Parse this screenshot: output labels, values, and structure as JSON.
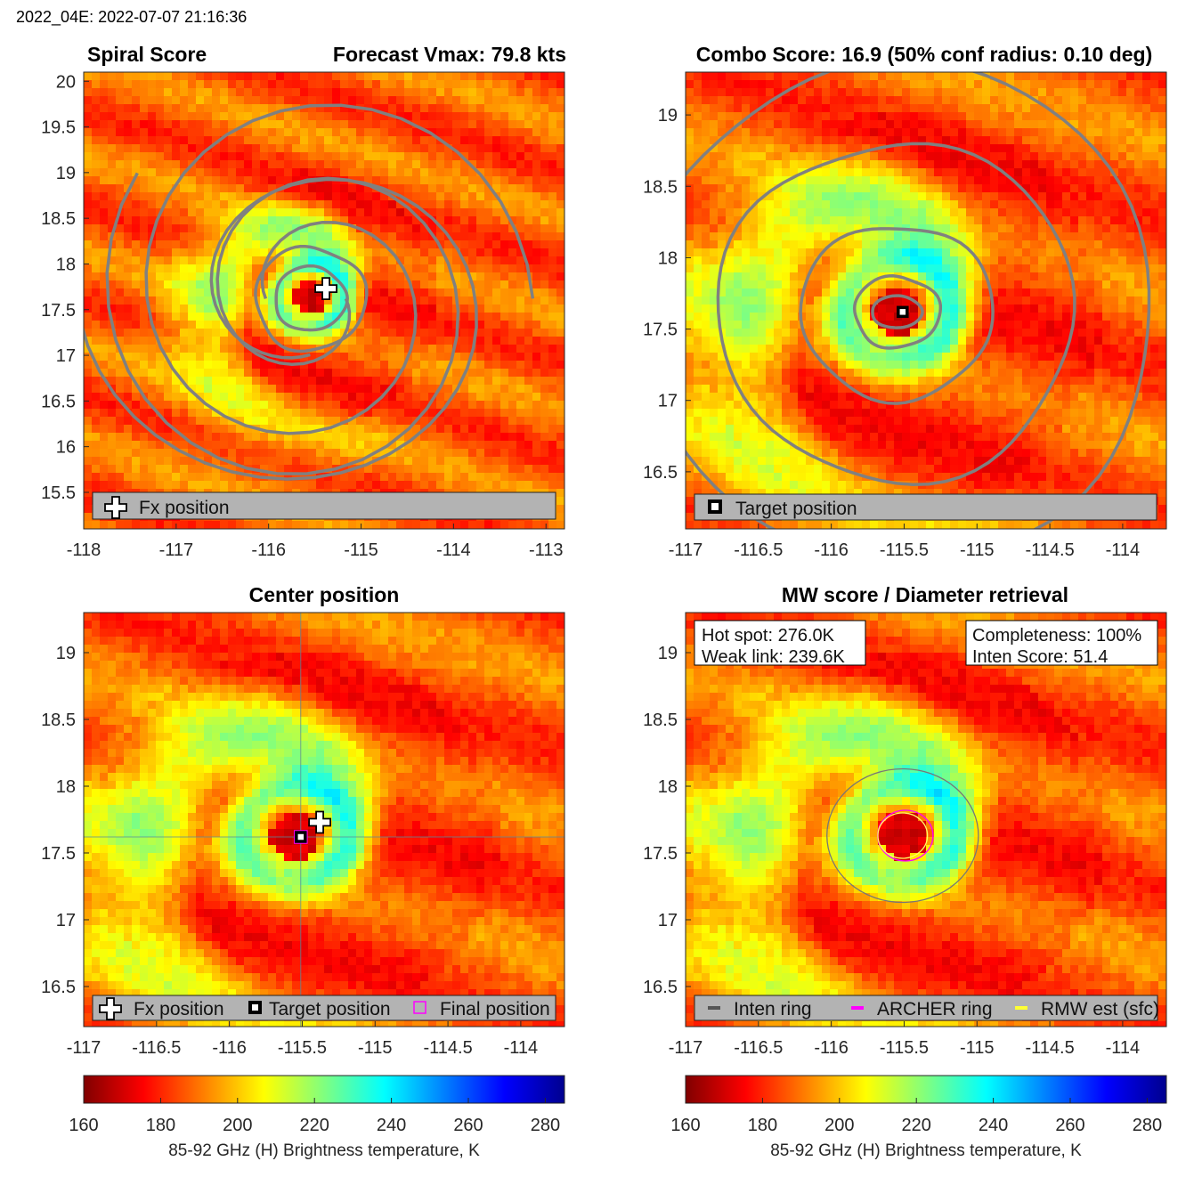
{
  "header": {
    "label": "2022_04E: 2022-07-07 21:16:36"
  },
  "chart_data": [
    {
      "id": "spiral",
      "type": "heatmap",
      "title": "Spiral Score",
      "title_right": "Forecast Vmax: 79.8 kts",
      "xlim": [
        -118,
        -112.8
      ],
      "ylim": [
        15.1,
        20.1
      ],
      "xticks": [
        -118,
        -117,
        -116,
        -115,
        -114,
        -113
      ],
      "xtick_labels": [
        "-118",
        "-117",
        "-116",
        "-115",
        "-114",
        "-113"
      ],
      "yticks": [
        15.5,
        16,
        16.5,
        17,
        17.5,
        18,
        18.5,
        19,
        19.5,
        20
      ],
      "ytick_labels": [
        "15.5",
        "16",
        "16.5",
        "17",
        "17.5",
        "18",
        "18.5",
        "19",
        "19.5",
        "20"
      ],
      "center": [
        -115.55,
        17.62
      ],
      "fx_position": [
        -115.38,
        17.73
      ],
      "legend": [
        {
          "symbol": "plus",
          "label": "Fx position"
        }
      ]
    },
    {
      "id": "combo",
      "type": "heatmap",
      "title": "Combo Score: 16.9  (50% conf radius: 0.10 deg)",
      "xlim": [
        -117,
        -113.7
      ],
      "ylim": [
        16.1,
        19.3
      ],
      "xticks": [
        -117,
        -116.5,
        -116,
        -115.5,
        -115,
        -114.5,
        -114
      ],
      "xtick_labels": [
        "-117",
        "-116.5",
        "-116",
        "-115.5",
        "-115",
        "-114.5",
        "-114"
      ],
      "yticks": [
        16.5,
        17,
        17.5,
        18,
        18.5,
        19
      ],
      "ytick_labels": [
        "16.5",
        "17",
        "17.5",
        "18",
        "18.5",
        "19"
      ],
      "center": [
        -115.55,
        17.62
      ],
      "target_position": [
        -115.51,
        17.62
      ],
      "legend": [
        {
          "symbol": "square",
          "label": "Target position"
        }
      ]
    },
    {
      "id": "center",
      "type": "heatmap",
      "title": "Center position",
      "xlim": [
        -117,
        -113.7
      ],
      "ylim": [
        16.2,
        19.3
      ],
      "xticks": [
        -117,
        -116.5,
        -116,
        -115.5,
        -115,
        -114.5,
        -114
      ],
      "xtick_labels": [
        "-117",
        "-116.5",
        "-116",
        "-115.5",
        "-115",
        "-114.5",
        "-114"
      ],
      "yticks": [
        16.5,
        17,
        17.5,
        18,
        18.5,
        19
      ],
      "ytick_labels": [
        "16.5",
        "17",
        "17.5",
        "18",
        "18.5",
        "19"
      ],
      "center": [
        -115.55,
        17.62
      ],
      "fx_position": [
        -115.38,
        17.73
      ],
      "target_position": [
        -115.51,
        17.62
      ],
      "final_position": [
        -115.51,
        17.62
      ],
      "legend": [
        {
          "symbol": "plus",
          "label": "Fx position"
        },
        {
          "symbol": "square",
          "label": "Target position"
        },
        {
          "symbol": "magenta-square",
          "label": "Final position"
        }
      ]
    },
    {
      "id": "mw",
      "type": "heatmap",
      "title": "MW score / Diameter retrieval",
      "xlim": [
        -117,
        -113.7
      ],
      "ylim": [
        16.2,
        19.3
      ],
      "xticks": [
        -117,
        -116.5,
        -116,
        -115.5,
        -115,
        -114.5,
        -114
      ],
      "xtick_labels": [
        "-117",
        "-116.5",
        "-116",
        "-115.5",
        "-115",
        "-114.5",
        "-114"
      ],
      "yticks": [
        16.5,
        17,
        17.5,
        18,
        18.5,
        19
      ],
      "ytick_labels": [
        "16.5",
        "17",
        "17.5",
        "18",
        "18.5",
        "19"
      ],
      "center": [
        -115.51,
        17.63
      ],
      "info_left": [
        "Hot spot: 276.0K",
        "Weak link: 239.6K"
      ],
      "info_right": [
        "Completeness: 100%",
        "Inten Score: 51.4"
      ],
      "rings": {
        "inten_radius_deg": 0.5,
        "archer_radius_deg": 0.19,
        "rmw_radius_deg": 0.17
      },
      "legend": [
        {
          "symbol": "gray-line",
          "label": "Inten ring"
        },
        {
          "symbol": "magenta-line",
          "label": "ARCHER ring"
        },
        {
          "symbol": "yellow-line",
          "label": "RMW est (sfc)"
        }
      ]
    }
  ],
  "colorbar": {
    "range": [
      160,
      285
    ],
    "ticks": [
      160,
      180,
      200,
      220,
      240,
      260,
      280
    ],
    "tick_labels": [
      "160",
      "180",
      "200",
      "220",
      "240",
      "260",
      "280"
    ],
    "label": "85-92 GHz (H) Brightness temperature, K",
    "colormap": "jet-reversed"
  },
  "colors": {
    "contour": "#808080",
    "archer": "#ff00ff",
    "rmw": "#ffff66",
    "legend_bg": "#b3b3b3"
  }
}
